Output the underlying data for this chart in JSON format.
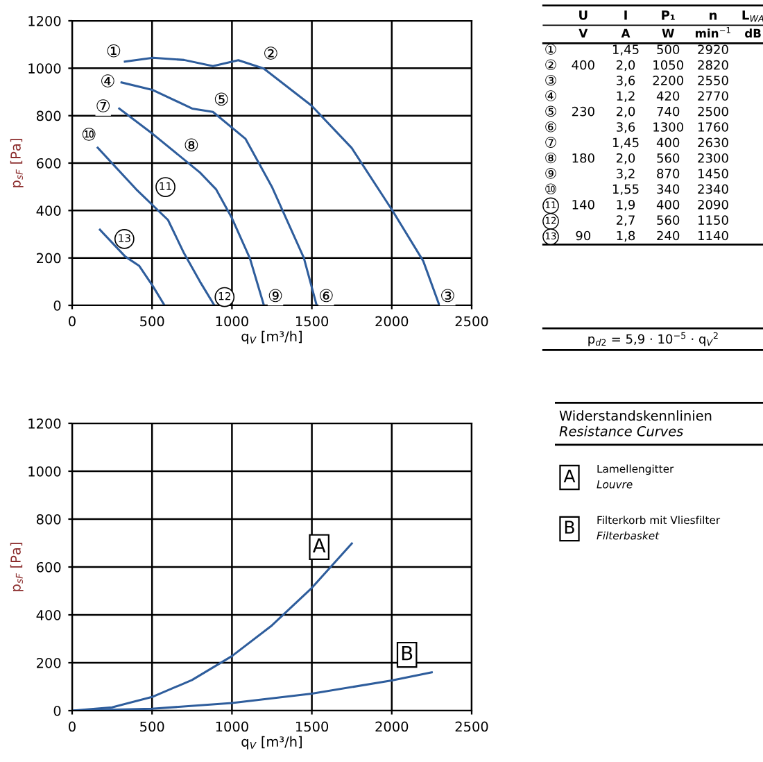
{
  "chart_data": [
    {
      "type": "line",
      "xlabel": "q$_{V}$ [m³/h]",
      "ylabel": "p$_{sF}$ [Pa]",
      "xlim": [
        0,
        2500
      ],
      "ylim": [
        0,
        1200
      ],
      "xticks": [
        0,
        500,
        1000,
        1500,
        2000,
        2500
      ],
      "yticks": [
        0,
        200,
        400,
        600,
        800,
        1000,
        1200
      ],
      "grid": true,
      "legend": false,
      "marker": "none",
      "line_style": "solid",
      "series": [
        {
          "color": "#2e5d9c",
          "x": [
            330,
            506,
            700,
            881,
            1040,
            1199,
            1497,
            1749,
            2003,
            2197,
            2298
          ],
          "values": [
            1028,
            1044,
            1035,
            1009,
            1034,
            999,
            843,
            664,
            401,
            187,
            0
          ]
        },
        {
          "color": "#2e5d9c",
          "x": [
            309,
            506,
            751,
            881,
            1084,
            1250,
            1450,
            1530
          ],
          "values": [
            940,
            908,
            830,
            816,
            703,
            500,
            200,
            0
          ]
        },
        {
          "color": "#2e5d9c",
          "x": [
            295,
            506,
            800,
            900,
            997,
            1113,
            1200
          ],
          "values": [
            830,
            722,
            560,
            490,
            372,
            197,
            0
          ]
        },
        {
          "color": "#2e5d9c",
          "x": [
            160,
            400,
            600,
            700,
            800,
            890
          ],
          "values": [
            665,
            490,
            360,
            220,
            100,
            0
          ]
        },
        {
          "color": "#2e5d9c",
          "x": [
            174,
            332,
            419,
            506,
            578
          ],
          "values": [
            319,
            206,
            167,
            80,
            0
          ]
        }
      ],
      "annotations": [
        "①",
        "②",
        "③",
        "④",
        "⑤",
        "⑥",
        "⑦",
        "⑧",
        "⑨",
        "⑩",
        "11",
        "12",
        "13"
      ]
    },
    {
      "type": "other",
      "categories": [
        "U",
        "I",
        "P₁",
        "n",
        "L$_{WA}$"
      ],
      "y_categories": [
        "①",
        "②",
        "③",
        "④",
        "⑤",
        "⑥",
        "⑦",
        "⑧",
        "⑨",
        "⑩",
        "11",
        "12",
        "13"
      ],
      "cell_labels": [
        [
          "V",
          "A",
          "W",
          "min$^{−1}$",
          "dB"
        ],
        [
          null,
          "1,45",
          "500",
          "2920",
          null
        ],
        [
          "400",
          "2,0",
          "1050",
          "2820",
          null
        ],
        [
          null,
          "3,6",
          "2200",
          "2550",
          null
        ],
        [
          null,
          "1,2",
          "420",
          "2770",
          null
        ],
        [
          "230",
          "2,0",
          "740",
          "2500",
          null
        ],
        [
          null,
          "3,6",
          "1300",
          "1760",
          null
        ],
        [
          null,
          "1,45",
          "400",
          "2630",
          null
        ],
        [
          "180",
          "2,0",
          "560",
          "2300",
          null
        ],
        [
          null,
          "3,2",
          "870",
          "1450",
          null
        ],
        [
          null,
          "1,55",
          "340",
          "2340",
          null
        ],
        [
          "140",
          "1,9",
          "400",
          "2090",
          null
        ],
        [
          null,
          "2,7",
          "560",
          "1150",
          null
        ],
        [
          "90",
          "1,8",
          "240",
          "1140",
          null
        ]
      ],
      "annotations": [
        "p$_{d2}$ = 5,9 · 10$^{−5}$ · q$_{V}$$^{2}$"
      ]
    },
    {
      "type": "line",
      "xlabel": "q$_{V}$ [m³/h]",
      "ylabel": "p$_{sF}$ [Pa]",
      "xlim": [
        0,
        2500
      ],
      "ylim": [
        0,
        1200
      ],
      "xticks": [
        0,
        500,
        1000,
        1500,
        2000,
        2500
      ],
      "yticks": [
        0,
        200,
        400,
        600,
        800,
        1000,
        1200
      ],
      "grid": true,
      "legend": false,
      "marker": "none",
      "line_style": "solid",
      "series": [
        {
          "color": "#2e5d9c",
          "x": [
            0,
            250,
            500,
            750,
            1000,
            1250,
            1500,
            1750
          ],
          "values": [
            0,
            14,
            57,
            128,
            228,
            356,
            513,
            698
          ]
        },
        {
          "color": "#2e5d9c",
          "x": [
            0,
            500,
            1000,
            1500,
            2000,
            2250
          ],
          "values": [
            0,
            8,
            32,
            71,
            126,
            160
          ]
        }
      ],
      "annotations": [
        {
          "text": "A",
          "x": 1546,
          "y": 683
        },
        {
          "text": "B",
          "x": 2095,
          "y": 233
        }
      ]
    },
    {
      "type": "other",
      "title": "Widerstandskennlinien",
      "subtitle": "Resistance Curves",
      "categories": [
        "A",
        "B"
      ],
      "cell_labels": [
        [
          "Lamellengitter",
          "Louvre"
        ],
        [
          "Filterkorb mit Vliesfilter",
          "Filterbasket"
        ]
      ]
    }
  ]
}
